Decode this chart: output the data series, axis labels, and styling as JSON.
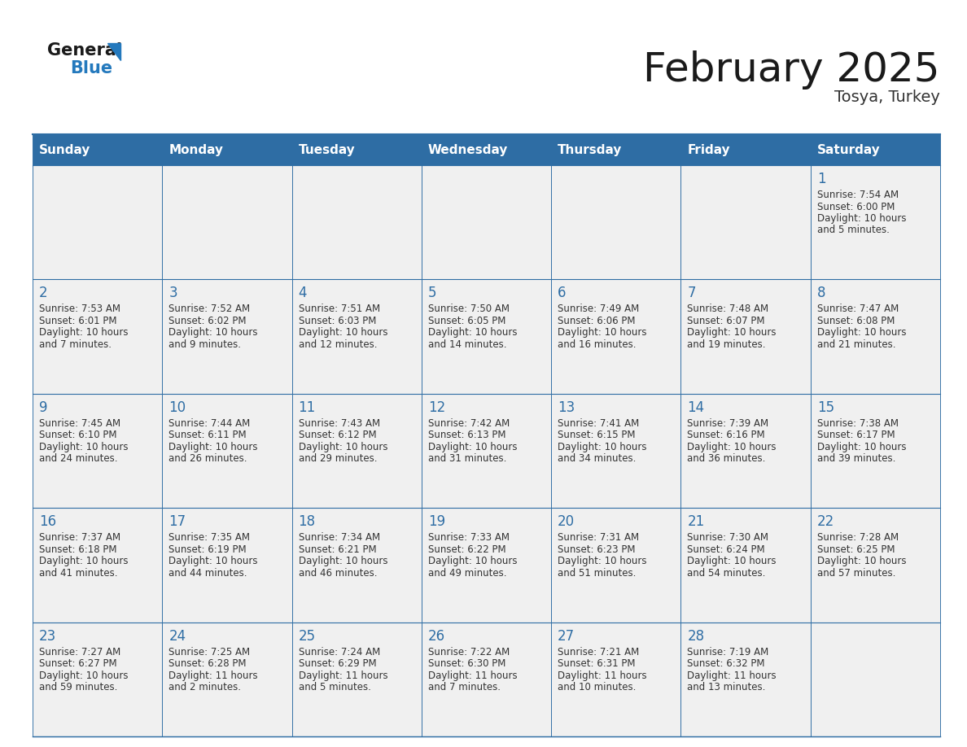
{
  "title": "February 2025",
  "subtitle": "Tosya, Turkey",
  "header_bg": "#2E6DA4",
  "header_text_color": "#FFFFFF",
  "cell_bg": "#F0F0F0",
  "border_color": "#2E6DA4",
  "days_of_week": [
    "Sunday",
    "Monday",
    "Tuesday",
    "Wednesday",
    "Thursday",
    "Friday",
    "Saturday"
  ],
  "title_color": "#1a1a1a",
  "subtitle_color": "#333333",
  "day_number_color": "#2E6DA4",
  "text_color": "#333333",
  "logo_general_color": "#1a1a1a",
  "logo_blue_color": "#2479BD",
  "calendar_data": [
    [
      null,
      null,
      null,
      null,
      null,
      null,
      {
        "day": 1,
        "sunrise": "7:54 AM",
        "sunset": "6:00 PM",
        "daylight_line1": "Daylight: 10 hours",
        "daylight_line2": "and 5 minutes."
      }
    ],
    [
      {
        "day": 2,
        "sunrise": "7:53 AM",
        "sunset": "6:01 PM",
        "daylight_line1": "Daylight: 10 hours",
        "daylight_line2": "and 7 minutes."
      },
      {
        "day": 3,
        "sunrise": "7:52 AM",
        "sunset": "6:02 PM",
        "daylight_line1": "Daylight: 10 hours",
        "daylight_line2": "and 9 minutes."
      },
      {
        "day": 4,
        "sunrise": "7:51 AM",
        "sunset": "6:03 PM",
        "daylight_line1": "Daylight: 10 hours",
        "daylight_line2": "and 12 minutes."
      },
      {
        "day": 5,
        "sunrise": "7:50 AM",
        "sunset": "6:05 PM",
        "daylight_line1": "Daylight: 10 hours",
        "daylight_line2": "and 14 minutes."
      },
      {
        "day": 6,
        "sunrise": "7:49 AM",
        "sunset": "6:06 PM",
        "daylight_line1": "Daylight: 10 hours",
        "daylight_line2": "and 16 minutes."
      },
      {
        "day": 7,
        "sunrise": "7:48 AM",
        "sunset": "6:07 PM",
        "daylight_line1": "Daylight: 10 hours",
        "daylight_line2": "and 19 minutes."
      },
      {
        "day": 8,
        "sunrise": "7:47 AM",
        "sunset": "6:08 PM",
        "daylight_line1": "Daylight: 10 hours",
        "daylight_line2": "and 21 minutes."
      }
    ],
    [
      {
        "day": 9,
        "sunrise": "7:45 AM",
        "sunset": "6:10 PM",
        "daylight_line1": "Daylight: 10 hours",
        "daylight_line2": "and 24 minutes."
      },
      {
        "day": 10,
        "sunrise": "7:44 AM",
        "sunset": "6:11 PM",
        "daylight_line1": "Daylight: 10 hours",
        "daylight_line2": "and 26 minutes."
      },
      {
        "day": 11,
        "sunrise": "7:43 AM",
        "sunset": "6:12 PM",
        "daylight_line1": "Daylight: 10 hours",
        "daylight_line2": "and 29 minutes."
      },
      {
        "day": 12,
        "sunrise": "7:42 AM",
        "sunset": "6:13 PM",
        "daylight_line1": "Daylight: 10 hours",
        "daylight_line2": "and 31 minutes."
      },
      {
        "day": 13,
        "sunrise": "7:41 AM",
        "sunset": "6:15 PM",
        "daylight_line1": "Daylight: 10 hours",
        "daylight_line2": "and 34 minutes."
      },
      {
        "day": 14,
        "sunrise": "7:39 AM",
        "sunset": "6:16 PM",
        "daylight_line1": "Daylight: 10 hours",
        "daylight_line2": "and 36 minutes."
      },
      {
        "day": 15,
        "sunrise": "7:38 AM",
        "sunset": "6:17 PM",
        "daylight_line1": "Daylight: 10 hours",
        "daylight_line2": "and 39 minutes."
      }
    ],
    [
      {
        "day": 16,
        "sunrise": "7:37 AM",
        "sunset": "6:18 PM",
        "daylight_line1": "Daylight: 10 hours",
        "daylight_line2": "and 41 minutes."
      },
      {
        "day": 17,
        "sunrise": "7:35 AM",
        "sunset": "6:19 PM",
        "daylight_line1": "Daylight: 10 hours",
        "daylight_line2": "and 44 minutes."
      },
      {
        "day": 18,
        "sunrise": "7:34 AM",
        "sunset": "6:21 PM",
        "daylight_line1": "Daylight: 10 hours",
        "daylight_line2": "and 46 minutes."
      },
      {
        "day": 19,
        "sunrise": "7:33 AM",
        "sunset": "6:22 PM",
        "daylight_line1": "Daylight: 10 hours",
        "daylight_line2": "and 49 minutes."
      },
      {
        "day": 20,
        "sunrise": "7:31 AM",
        "sunset": "6:23 PM",
        "daylight_line1": "Daylight: 10 hours",
        "daylight_line2": "and 51 minutes."
      },
      {
        "day": 21,
        "sunrise": "7:30 AM",
        "sunset": "6:24 PM",
        "daylight_line1": "Daylight: 10 hours",
        "daylight_line2": "and 54 minutes."
      },
      {
        "day": 22,
        "sunrise": "7:28 AM",
        "sunset": "6:25 PM",
        "daylight_line1": "Daylight: 10 hours",
        "daylight_line2": "and 57 minutes."
      }
    ],
    [
      {
        "day": 23,
        "sunrise": "7:27 AM",
        "sunset": "6:27 PM",
        "daylight_line1": "Daylight: 10 hours",
        "daylight_line2": "and 59 minutes."
      },
      {
        "day": 24,
        "sunrise": "7:25 AM",
        "sunset": "6:28 PM",
        "daylight_line1": "Daylight: 11 hours",
        "daylight_line2": "and 2 minutes."
      },
      {
        "day": 25,
        "sunrise": "7:24 AM",
        "sunset": "6:29 PM",
        "daylight_line1": "Daylight: 11 hours",
        "daylight_line2": "and 5 minutes."
      },
      {
        "day": 26,
        "sunrise": "7:22 AM",
        "sunset": "6:30 PM",
        "daylight_line1": "Daylight: 11 hours",
        "daylight_line2": "and 7 minutes."
      },
      {
        "day": 27,
        "sunrise": "7:21 AM",
        "sunset": "6:31 PM",
        "daylight_line1": "Daylight: 11 hours",
        "daylight_line2": "and 10 minutes."
      },
      {
        "day": 28,
        "sunrise": "7:19 AM",
        "sunset": "6:32 PM",
        "daylight_line1": "Daylight: 11 hours",
        "daylight_line2": "and 13 minutes."
      },
      null
    ]
  ]
}
